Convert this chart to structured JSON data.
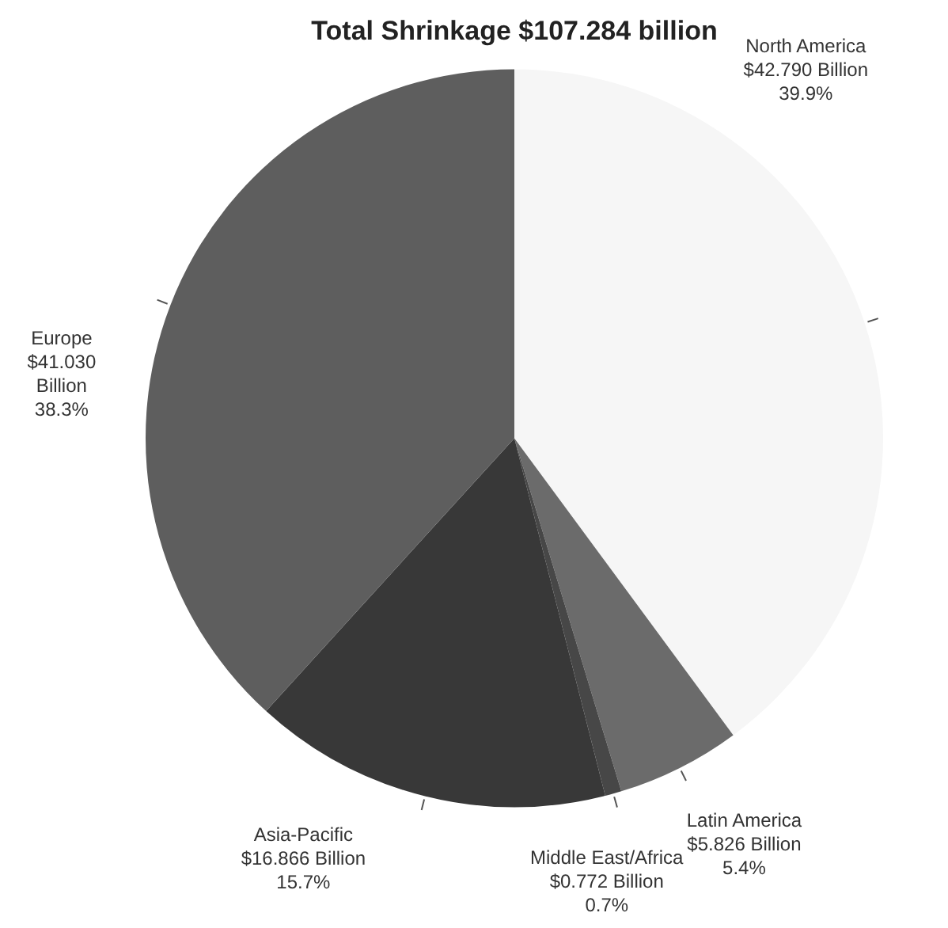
{
  "chart_data": {
    "type": "pie",
    "title": "Total Shrinkage $107.284 billion",
    "categories": [
      "North America",
      "Latin America",
      "Middle East/Africa",
      "Asia-Pacific",
      "Europe"
    ],
    "values": [
      42.79,
      5.826,
      0.772,
      16.866,
      41.03
    ],
    "colors": [
      "#f6f6f6",
      "#6b6b6b",
      "#474747",
      "#383838",
      "#5e5e5e"
    ],
    "value_labels": [
      "$42.790 Billion\n39.9%",
      "$5.826 Billion\n5.4%",
      "$0.772 Billion\n0.7%",
      "$16.866 Billion\n15.7%",
      "$41.030\nBillion\n38.3%"
    ],
    "legend": false
  }
}
